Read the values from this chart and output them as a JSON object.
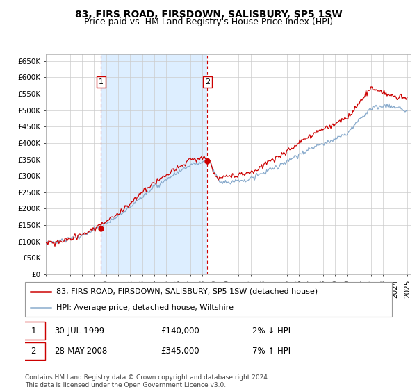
{
  "title": "83, FIRS ROAD, FIRSDOWN, SALISBURY, SP5 1SW",
  "subtitle": "Price paid vs. HM Land Registry's House Price Index (HPI)",
  "ylabel_ticks": [
    "£0",
    "£50K",
    "£100K",
    "£150K",
    "£200K",
    "£250K",
    "£300K",
    "£350K",
    "£400K",
    "£450K",
    "£500K",
    "£550K",
    "£600K",
    "£650K"
  ],
  "ytick_values": [
    0,
    50000,
    100000,
    150000,
    200000,
    250000,
    300000,
    350000,
    400000,
    450000,
    500000,
    550000,
    600000,
    650000
  ],
  "ylim": [
    0,
    670000
  ],
  "xlim_start": 1995.0,
  "xlim_end": 2025.3,
  "plot_bg": "#ffffff",
  "fill_bg": "#ddeeff",
  "grid_color": "#cccccc",
  "red_line_color": "#cc0000",
  "blue_line_color": "#88aacc",
  "purchase1_year": 1999.58,
  "purchase1_price": 140000,
  "purchase2_year": 2008.41,
  "purchase2_price": 345000,
  "legend_label1": "83, FIRS ROAD, FIRSDOWN, SALISBURY, SP5 1SW (detached house)",
  "legend_label2": "HPI: Average price, detached house, Wiltshire",
  "note1_date": "30-JUL-1999",
  "note1_price": "£140,000",
  "note1_hpi": "2% ↓ HPI",
  "note2_date": "28-MAY-2008",
  "note2_price": "£345,000",
  "note2_hpi": "7% ↑ HPI",
  "footer": "Contains HM Land Registry data © Crown copyright and database right 2024.\nThis data is licensed under the Open Government Licence v3.0.",
  "title_fontsize": 10,
  "subtitle_fontsize": 9,
  "tick_fontsize": 7.5,
  "legend_fontsize": 8,
  "note_fontsize": 8.5,
  "footer_fontsize": 6.5
}
